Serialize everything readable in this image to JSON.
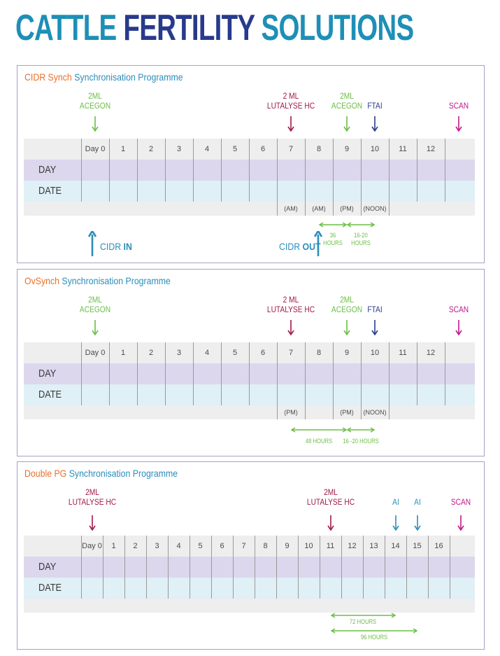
{
  "page": {
    "title_part1": "CATTLE",
    "title_part2": "FERTILITY",
    "title_part3": "SOLUTIONS"
  },
  "colors": {
    "teal": "#1e8fb7",
    "navy": "#283a8c",
    "orange": "#e8702a",
    "green": "#6cbd45",
    "crimson": "#a01946",
    "magenta": "#c0178a",
    "day_row": "#dcd7ed",
    "date_row": "#dff0f6"
  },
  "row_labels": {
    "day": "DAY",
    "date": "DATE"
  },
  "cidr": {
    "title_prefix": "CIDR Synch",
    "title_suffix": "Synchronisation Programme",
    "days": [
      "Day 0",
      "1",
      "2",
      "3",
      "4",
      "5",
      "6",
      "7",
      "8",
      "9",
      "10",
      "11",
      "12"
    ],
    "markers": [
      {
        "label": "2ML\nACEGON",
        "day": 0,
        "color": "green"
      },
      {
        "label": "2 ML\nLUTALYSE HC",
        "day": 7,
        "color": "crimson"
      },
      {
        "label": "2ML\nACEGON",
        "day": 9,
        "color": "green"
      },
      {
        "label": "FTAI",
        "day": 10,
        "color": "navy"
      },
      {
        "label": "SCAN",
        "day": 13,
        "color": "magenta"
      }
    ],
    "time_notes": [
      {
        "text": "(AM)",
        "day": 7
      },
      {
        "text": "(AM)",
        "day": 8
      },
      {
        "text": "(PM)",
        "day": 9
      },
      {
        "text": "(NOON)",
        "day": 10
      }
    ],
    "intervals": [
      {
        "label": "36\nHOURS",
        "from": 8,
        "to": 9
      },
      {
        "label": "16-20\nHOURS",
        "from": 9,
        "to": 10
      }
    ],
    "cidr_in_prefix": "CIDR",
    "cidr_in_bold": "IN",
    "cidr_out_prefix": "CIDR",
    "cidr_out_bold": "OUT"
  },
  "ovsynch": {
    "title_prefix": "OvSynch",
    "title_suffix": "Synchronisation Programme",
    "days": [
      "Day 0",
      "1",
      "2",
      "3",
      "4",
      "5",
      "6",
      "7",
      "8",
      "9",
      "10",
      "11",
      "12"
    ],
    "markers": [
      {
        "label": "2ML\nACEGON",
        "day": 0,
        "color": "green"
      },
      {
        "label": "2 ML\nLUTALYSE HC",
        "day": 7,
        "color": "crimson"
      },
      {
        "label": "2ML\nACEGON",
        "day": 9,
        "color": "green"
      },
      {
        "label": "FTAI",
        "day": 10,
        "color": "navy"
      },
      {
        "label": "SCAN",
        "day": 13,
        "color": "magenta"
      }
    ],
    "time_notes": [
      {
        "text": "(PM)",
        "day": 7
      },
      {
        "text": "(PM)",
        "day": 9
      },
      {
        "text": "(NOON)",
        "day": 10
      }
    ],
    "intervals": [
      {
        "label": "48 HOURS",
        "from": 7,
        "to": 9
      },
      {
        "label": "16 -20 HOURS",
        "from": 9,
        "to": 10
      }
    ]
  },
  "doublepg": {
    "title_prefix": "Double PG",
    "title_suffix": "Synchronisation Programme",
    "days": [
      "Day 0",
      "1",
      "2",
      "3",
      "4",
      "5",
      "6",
      "7",
      "8",
      "9",
      "10",
      "11",
      "12",
      "13",
      "14",
      "15",
      "16"
    ],
    "markers": [
      {
        "label": "2ML\nLUTALYSE HC",
        "day": 0,
        "color": "crimson"
      },
      {
        "label": "2ML\nLUTALYSE HC",
        "day": 11,
        "color": "crimson"
      },
      {
        "label": "AI",
        "day": 14,
        "color": "teal"
      },
      {
        "label": "AI",
        "day": 15,
        "color": "teal"
      },
      {
        "label": "SCAN",
        "day": 17,
        "color": "magenta"
      }
    ],
    "intervals": [
      {
        "label": "72 HOURS",
        "from": 11,
        "to": 14
      },
      {
        "label": "96 HOURS",
        "from": 11,
        "to": 15
      }
    ]
  }
}
